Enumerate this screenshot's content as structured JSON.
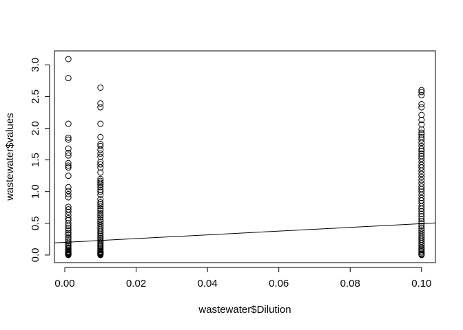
{
  "chart_data": {
    "type": "scatter",
    "title": "",
    "xlabel": "wastewater$Dilution",
    "ylabel": "wastewater$values",
    "xlim": [
      -0.0029,
      0.1039
    ],
    "ylim": [
      -0.12,
      3.22
    ],
    "x_ticks": [
      0.0,
      0.02,
      0.04,
      0.06,
      0.08,
      0.1
    ],
    "x_tick_labels": [
      "0.00",
      "0.02",
      "0.04",
      "0.06",
      "0.08",
      "0.10"
    ],
    "y_ticks": [
      0.0,
      0.5,
      1.0,
      1.5,
      2.0,
      2.5,
      3.0
    ],
    "y_tick_labels": [
      "0.0",
      "0.5",
      "1.0",
      "1.5",
      "2.0",
      "2.5",
      "3.0"
    ],
    "grid": false,
    "marker": "open-circle",
    "series": [
      {
        "x": 0.001,
        "values": [
          3.09,
          2.79,
          2.07,
          1.85,
          1.82,
          1.68,
          1.61,
          1.57,
          1.45,
          1.41,
          1.38,
          1.25,
          1.07,
          1.01,
          0.96,
          0.91,
          0.76,
          0.72,
          0.68,
          0.63,
          0.58,
          0.55,
          0.5,
          0.46,
          0.42,
          0.39,
          0.35,
          0.32,
          0.28,
          0.25,
          0.22,
          0.19,
          0.16,
          0.14,
          0.12,
          0.1,
          0.08,
          0.06,
          0.05,
          0.04,
          0.03,
          0.02,
          0.01,
          0.005,
          0.0
        ]
      },
      {
        "x": 0.01,
        "values": [
          2.64,
          2.39,
          2.33,
          2.07,
          1.86,
          1.75,
          1.72,
          1.66,
          1.6,
          1.55,
          1.47,
          1.43,
          1.38,
          1.3,
          1.2,
          1.17,
          1.14,
          1.11,
          1.07,
          1.03,
          1.0,
          0.95,
          0.88,
          0.83,
          0.8,
          0.77,
          0.73,
          0.7,
          0.66,
          0.63,
          0.6,
          0.56,
          0.53,
          0.5,
          0.47,
          0.44,
          0.41,
          0.38,
          0.35,
          0.32,
          0.3,
          0.27,
          0.25,
          0.22,
          0.2,
          0.18,
          0.16,
          0.14,
          0.12,
          0.1,
          0.08,
          0.06,
          0.05,
          0.04,
          0.03,
          0.02,
          0.01,
          0.0
        ]
      },
      {
        "x": 0.1,
        "values": [
          2.6,
          2.57,
          2.52,
          2.38,
          2.33,
          2.21,
          2.13,
          2.06,
          1.98,
          1.93,
          1.9,
          1.86,
          1.82,
          1.77,
          1.72,
          1.67,
          1.64,
          1.6,
          1.56,
          1.52,
          1.47,
          1.42,
          1.38,
          1.33,
          1.28,
          1.23,
          1.18,
          1.13,
          1.08,
          1.04,
          1.0,
          0.95,
          0.9,
          0.86,
          0.82,
          0.77,
          0.73,
          0.69,
          0.65,
          0.61,
          0.57,
          0.53,
          0.5,
          0.46,
          0.42,
          0.39,
          0.36,
          0.33,
          0.3,
          0.27,
          0.24,
          0.21,
          0.18,
          0.15,
          0.12,
          0.1,
          0.08,
          0.06,
          0.04,
          0.02,
          0.01,
          0.0
        ]
      }
    ],
    "regression_line": {
      "intercept": 0.2,
      "slope": 2.95
    }
  }
}
